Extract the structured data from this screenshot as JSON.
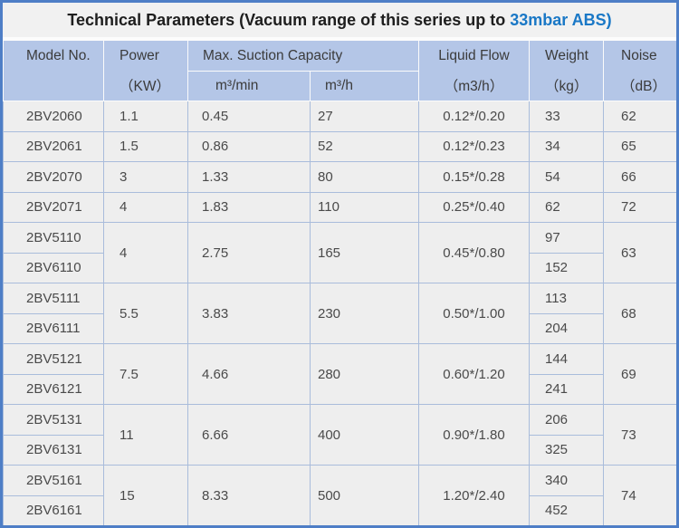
{
  "title": {
    "main": "Technical Parameters (Vacuum range of this series up to",
    "highlight": "33mbar ABS)"
  },
  "table": {
    "header": {
      "model": {
        "label": "Model No.",
        "unit": ""
      },
      "power": {
        "label": "Power",
        "unit": "（KW）"
      },
      "suction": {
        "label": "Max. Suction Capacity",
        "sub": [
          "m³/min",
          "m³/h"
        ]
      },
      "liquid_flow": {
        "label": "Liquid Flow",
        "unit": "（m3/h）"
      },
      "weight": {
        "label": "Weight",
        "unit": "（kg）"
      },
      "noise": {
        "label": "Noise",
        "unit": "（dB）"
      }
    },
    "groups": [
      {
        "models": [
          "2BV2060"
        ],
        "power": "1.1",
        "m3_min": "0.45",
        "m3_h": "27",
        "liquid_flow": "0.12*/0.20",
        "weights": [
          "33"
        ],
        "noise": "62"
      },
      {
        "models": [
          "2BV2061"
        ],
        "power": "1.5",
        "m3_min": "0.86",
        "m3_h": "52",
        "liquid_flow": "0.12*/0.23",
        "weights": [
          "34"
        ],
        "noise": "65"
      },
      {
        "models": [
          "2BV2070"
        ],
        "power": "3",
        "m3_min": "1.33",
        "m3_h": "80",
        "liquid_flow": "0.15*/0.28",
        "weights": [
          "54"
        ],
        "noise": "66"
      },
      {
        "models": [
          "2BV2071"
        ],
        "power": "4",
        "m3_min": "1.83",
        "m3_h": "110",
        "liquid_flow": "0.25*/0.40",
        "weights": [
          "62"
        ],
        "noise": "72"
      },
      {
        "models": [
          "2BV5110",
          "2BV6110"
        ],
        "power": "4",
        "m3_min": "2.75",
        "m3_h": "165",
        "liquid_flow": "0.45*/0.80",
        "weights": [
          "97",
          "152"
        ],
        "noise": "63"
      },
      {
        "models": [
          "2BV5111",
          "2BV6111"
        ],
        "power": "5.5",
        "m3_min": "3.83",
        "m3_h": "230",
        "liquid_flow": "0.50*/1.00",
        "weights": [
          "113",
          "204"
        ],
        "noise": "68"
      },
      {
        "models": [
          "2BV5121",
          "2BV6121"
        ],
        "power": "7.5",
        "m3_min": "4.66",
        "m3_h": "280",
        "liquid_flow": "0.60*/1.20",
        "weights": [
          "144",
          "241"
        ],
        "noise": "69"
      },
      {
        "models": [
          "2BV5131",
          "2BV6131"
        ],
        "power": "11",
        "m3_min": "6.66",
        "m3_h": "400",
        "liquid_flow": "0.90*/1.80",
        "weights": [
          "206",
          "325"
        ],
        "noise": "73"
      },
      {
        "models": [
          "2BV5161",
          "2BV6161"
        ],
        "power": "15",
        "m3_min": "8.33",
        "m3_h": "500",
        "liquid_flow": "1.20*/2.40",
        "weights": [
          "340",
          "452"
        ],
        "noise": "74"
      }
    ]
  },
  "chart_data": {
    "type": "table",
    "title": "Technical Parameters (Vacuum range of this series up to 33mbar ABS)",
    "columns": [
      "Model No.",
      "Power（KW）",
      "Max. Suction Capacity m³/min",
      "Max. Suction Capacity m³/h",
      "Liquid Flow（m3/h）",
      "Weight（kg）",
      "Noise（dB）"
    ],
    "rows": [
      [
        "2BV2060",
        "1.1",
        "0.45",
        "27",
        "0.12*/0.20",
        "33",
        "62"
      ],
      [
        "2BV2061",
        "1.5",
        "0.86",
        "52",
        "0.12*/0.23",
        "34",
        "65"
      ],
      [
        "2BV2070",
        "3",
        "1.33",
        "80",
        "0.15*/0.28",
        "54",
        "66"
      ],
      [
        "2BV2071",
        "4",
        "1.83",
        "110",
        "0.25*/0.40",
        "62",
        "72"
      ],
      [
        "2BV5110",
        "4",
        "2.75",
        "165",
        "0.45*/0.80",
        "97",
        "63"
      ],
      [
        "2BV6110",
        "",
        "",
        "",
        "",
        "152",
        ""
      ],
      [
        "2BV5111",
        "5.5",
        "3.83",
        "230",
        "0.50*/1.00",
        "113",
        "68"
      ],
      [
        "2BV6111",
        "",
        "",
        "",
        "",
        "204",
        ""
      ],
      [
        "2BV5121",
        "7.5",
        "4.66",
        "280",
        "0.60*/1.20",
        "144",
        "69"
      ],
      [
        "2BV6121",
        "",
        "",
        "",
        "",
        "241",
        ""
      ],
      [
        "2BV5131",
        "11",
        "6.66",
        "400",
        "0.90*/1.80",
        "206",
        "73"
      ],
      [
        "2BV6131",
        "",
        "",
        "",
        "",
        "325",
        ""
      ],
      [
        "2BV5161",
        "15",
        "8.33",
        "500",
        "1.20*/2.40",
        "340",
        "74"
      ],
      [
        "2BV6161",
        "",
        "",
        "",
        "",
        "452",
        ""
      ]
    ]
  },
  "colors": {
    "frame_border": "#4e7ec6",
    "header_bg": "#b4c6e7",
    "row_bg": "#eeeeee",
    "grid_line": "#a9bcdb",
    "title_bg": "#f1f1f1",
    "title_highlight": "#1a78c6"
  }
}
